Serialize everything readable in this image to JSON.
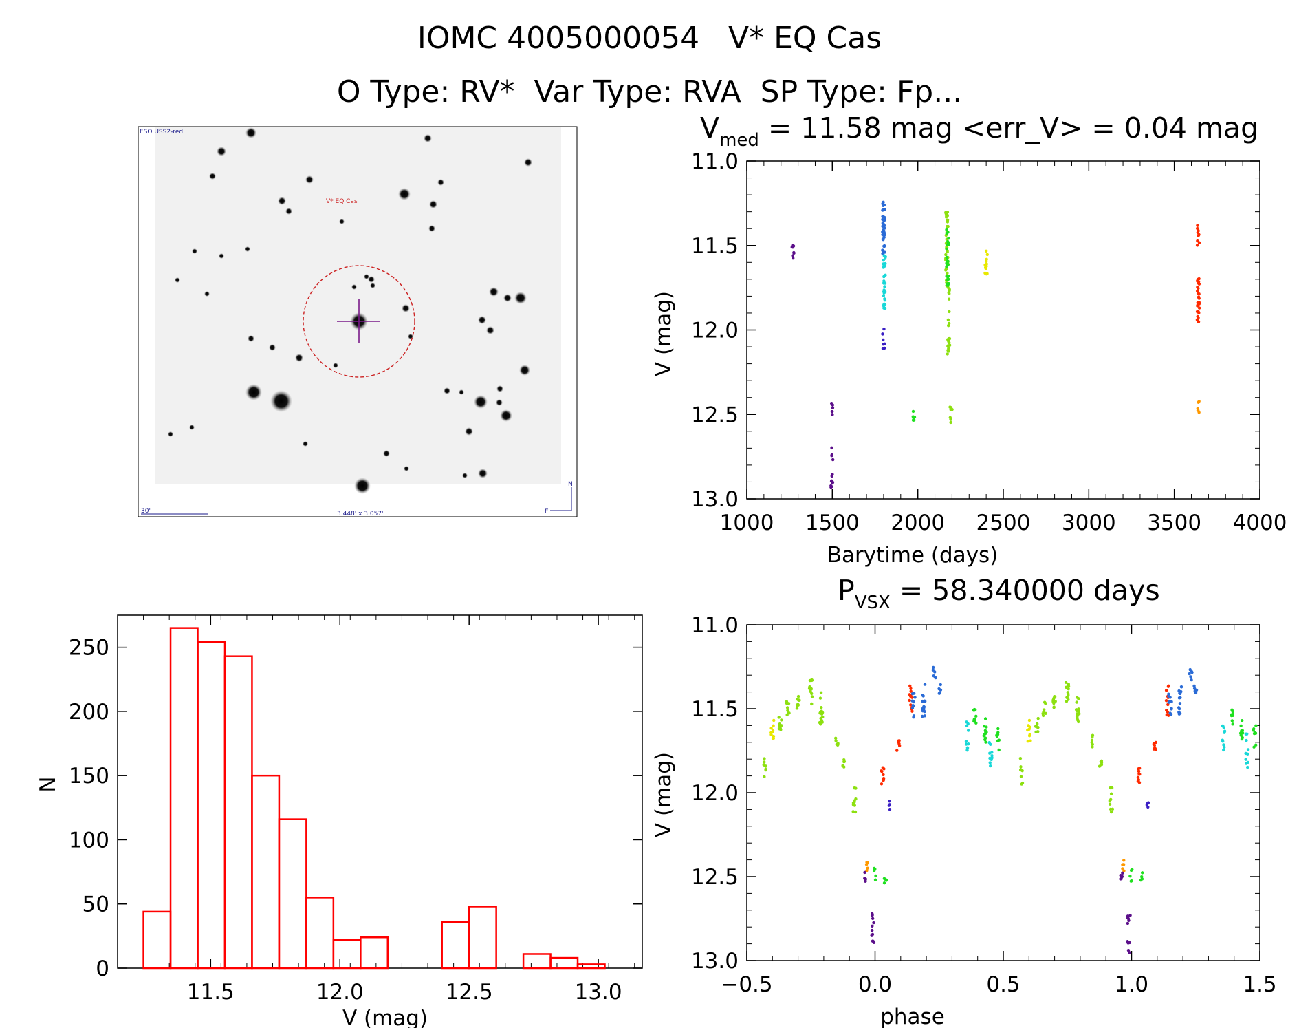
{
  "header": {
    "title_line1": "IOMC 4005000054   V* EQ Cas",
    "title_line2": "O Type: RV*  Var Type: RVA  SP Type: Fp..."
  },
  "image_panel": {
    "survey_label": "ESO USS2-red",
    "target_label": "V* EQ Cas",
    "scale_label": "30\"",
    "fov_label": "3.448' x 3.057'",
    "north_label": "N",
    "east_label": "E"
  },
  "colors": {
    "histogram": "#ff0000",
    "aperture_circle": "#cc2222",
    "palette": [
      "#5b0f8a",
      "#3a1fc4",
      "#2a6bd6",
      "#19d8d8",
      "#1fe01f",
      "#8de010",
      "#e8e800",
      "#ff9900",
      "#ff2a00"
    ]
  },
  "chart_data": [
    {
      "type": "scatter",
      "id": "lightcurve",
      "title_main": "V",
      "title_sub": "med",
      "title_rest": " = 11.58 mag <err_V> = 0.04 mag",
      "xlabel": "Barytime (days)",
      "ylabel": "V (mag)",
      "xlim": [
        1000,
        4000
      ],
      "ylim": [
        13.0,
        11.0
      ],
      "xticks": [
        1000,
        1500,
        2000,
        2500,
        3000,
        3500,
        4000
      ],
      "yticks": [
        11.0,
        11.5,
        12.0,
        12.5,
        13.0
      ],
      "ytick_labels": [
        "11.0",
        "11.5",
        "12.0",
        "12.5",
        "13.0"
      ],
      "clusters": [
        {
          "x": 1270,
          "ymin": 11.48,
          "ymax": 11.58,
          "color": 0,
          "n": 8
        },
        {
          "x": 1498,
          "ymin": 12.43,
          "ymax": 12.55,
          "color": 0,
          "n": 6
        },
        {
          "x": 1498,
          "ymin": 12.68,
          "ymax": 12.97,
          "color": 0,
          "n": 14
        },
        {
          "x": 1800,
          "ymin": 11.24,
          "ymax": 11.55,
          "color": 2,
          "n": 40
        },
        {
          "x": 1805,
          "ymin": 11.55,
          "ymax": 11.88,
          "color": 3,
          "n": 30
        },
        {
          "x": 1800,
          "ymin": 11.98,
          "ymax": 12.12,
          "color": 1,
          "n": 8
        },
        {
          "x": 1975,
          "ymin": 12.47,
          "ymax": 12.57,
          "color": 4,
          "n": 6
        },
        {
          "x": 2170,
          "ymin": 11.3,
          "ymax": 11.75,
          "color": 5,
          "n": 45
        },
        {
          "x": 2175,
          "ymin": 11.38,
          "ymax": 11.75,
          "color": 4,
          "n": 30
        },
        {
          "x": 2180,
          "ymin": 11.75,
          "ymax": 12.15,
          "color": 5,
          "n": 25
        },
        {
          "x": 2195,
          "ymin": 12.45,
          "ymax": 12.55,
          "color": 5,
          "n": 8
        },
        {
          "x": 2400,
          "ymin": 11.52,
          "ymax": 11.7,
          "color": 6,
          "n": 12
        },
        {
          "x": 3640,
          "ymin": 11.37,
          "ymax": 11.5,
          "color": 8,
          "n": 12
        },
        {
          "x": 3640,
          "ymin": 11.65,
          "ymax": 11.97,
          "color": 8,
          "n": 30
        },
        {
          "x": 3640,
          "ymin": 12.4,
          "ymax": 12.49,
          "color": 7,
          "n": 6
        }
      ]
    },
    {
      "type": "bar",
      "id": "histogram",
      "xlabel": "V (mag)",
      "ylabel": "N",
      "xlim": [
        11.14,
        13.17
      ],
      "ylim": [
        0,
        275
      ],
      "xticks": [
        11.5,
        12.0,
        12.5,
        13.0
      ],
      "xtick_labels": [
        "11.5",
        "12.0",
        "12.5",
        "13.0"
      ],
      "yticks": [
        0,
        50,
        100,
        150,
        200,
        250
      ],
      "bin_edges": [
        11.24,
        11.345,
        11.45,
        11.555,
        11.66,
        11.765,
        11.87,
        11.975,
        12.08,
        12.185,
        12.29,
        12.395,
        12.5,
        12.605,
        12.71,
        12.815,
        12.92,
        13.025
      ],
      "values": [
        44,
        265,
        254,
        243,
        150,
        116,
        55,
        22,
        24,
        0,
        0,
        36,
        48,
        0,
        11,
        8,
        3
      ]
    },
    {
      "type": "scatter",
      "id": "phased",
      "title_main": "P",
      "title_sub": "VSX",
      "title_rest": " = 58.340000 days",
      "xlabel": "phase",
      "ylabel": "V (mag)",
      "xlim": [
        -0.5,
        1.5
      ],
      "ylim": [
        13.0,
        11.0
      ],
      "xticks": [
        -0.5,
        0.0,
        0.5,
        1.0,
        1.5
      ],
      "xtick_labels": [
        "−0.5",
        "0.0",
        "0.5",
        "1.0",
        "1.5"
      ],
      "yticks": [
        11.0,
        11.5,
        12.0,
        12.5,
        13.0
      ],
      "ytick_labels": [
        "11.0",
        "11.5",
        "12.0",
        "12.5",
        "13.0"
      ],
      "period": 1.0,
      "clusters": [
        {
          "x": -0.4,
          "ymin": 11.55,
          "ymax": 11.7,
          "color": 6,
          "n": 10
        },
        {
          "x": -0.37,
          "ymin": 11.55,
          "ymax": 11.65,
          "color": 5,
          "n": 8
        },
        {
          "x": -0.43,
          "ymin": 11.78,
          "ymax": 11.95,
          "color": 5,
          "n": 8
        },
        {
          "x": -0.34,
          "ymin": 11.45,
          "ymax": 11.55,
          "color": 5,
          "n": 8
        },
        {
          "x": -0.3,
          "ymin": 11.42,
          "ymax": 11.52,
          "color": 5,
          "n": 10
        },
        {
          "x": -0.25,
          "ymin": 11.32,
          "ymax": 11.48,
          "color": 5,
          "n": 14
        },
        {
          "x": -0.21,
          "ymin": 11.4,
          "ymax": 11.6,
          "color": 5,
          "n": 14
        },
        {
          "x": -0.15,
          "ymin": 11.65,
          "ymax": 11.75,
          "color": 5,
          "n": 6
        },
        {
          "x": -0.12,
          "ymin": 11.8,
          "ymax": 11.85,
          "color": 5,
          "n": 5
        },
        {
          "x": -0.08,
          "ymin": 11.97,
          "ymax": 12.12,
          "color": 5,
          "n": 10
        },
        {
          "x": -0.03,
          "ymin": 12.4,
          "ymax": 12.47,
          "color": 7,
          "n": 5
        },
        {
          "x": -0.04,
          "ymin": 12.47,
          "ymax": 12.53,
          "color": 0,
          "n": 5
        },
        {
          "x": 0.0,
          "ymin": 12.45,
          "ymax": 12.53,
          "color": 4,
          "n": 5
        },
        {
          "x": -0.01,
          "ymin": 12.7,
          "ymax": 12.96,
          "color": 0,
          "n": 12
        },
        {
          "x": 0.03,
          "ymin": 11.85,
          "ymax": 11.95,
          "color": 8,
          "n": 10
        },
        {
          "x": 0.04,
          "ymin": 12.47,
          "ymax": 12.55,
          "color": 4,
          "n": 5
        },
        {
          "x": 0.06,
          "ymin": 12.05,
          "ymax": 12.1,
          "color": 1,
          "n": 4
        },
        {
          "x": 0.09,
          "ymin": 11.68,
          "ymax": 11.76,
          "color": 8,
          "n": 6
        },
        {
          "x": 0.14,
          "ymin": 11.35,
          "ymax": 11.55,
          "color": 8,
          "n": 12
        },
        {
          "x": 0.15,
          "ymin": 11.38,
          "ymax": 11.55,
          "color": 2,
          "n": 10
        },
        {
          "x": 0.19,
          "ymin": 11.35,
          "ymax": 11.55,
          "color": 2,
          "n": 14
        },
        {
          "x": 0.23,
          "ymin": 11.25,
          "ymax": 11.33,
          "color": 2,
          "n": 6
        },
        {
          "x": 0.25,
          "ymin": 11.35,
          "ymax": 11.42,
          "color": 2,
          "n": 5
        },
        {
          "x": 0.36,
          "ymin": 11.55,
          "ymax": 11.75,
          "color": 3,
          "n": 10
        },
        {
          "x": 0.39,
          "ymin": 11.5,
          "ymax": 11.6,
          "color": 4,
          "n": 10
        },
        {
          "x": 0.43,
          "ymin": 11.55,
          "ymax": 11.7,
          "color": 4,
          "n": 12
        },
        {
          "x": 0.45,
          "ymin": 11.65,
          "ymax": 11.85,
          "color": 3,
          "n": 10
        },
        {
          "x": 0.48,
          "ymin": 11.6,
          "ymax": 11.75,
          "color": 4,
          "n": 8
        }
      ]
    }
  ]
}
